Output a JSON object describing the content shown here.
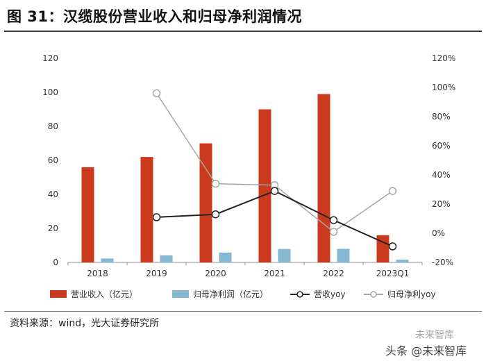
{
  "header": {
    "title": "图 31：汉缆股份营业收入和归母净利润情况"
  },
  "footer": {
    "source": "资料来源：wind，光大证券研究所"
  },
  "watermark": {
    "top": "未来智库",
    "bottom": "头条 @未来智库"
  },
  "colors": {
    "revenue_bar": "#cc3a1e",
    "profit_bar": "#86b7d0",
    "revenue_yoy": "#222222",
    "profit_yoy": "#a6a6a6",
    "grid": "#d9d9d9"
  },
  "chart_data": {
    "type": "bar",
    "categories": [
      "2018",
      "2019",
      "2020",
      "2021",
      "2022",
      "2023Q1"
    ],
    "series": [
      {
        "name": "营业收入（亿元）",
        "kind": "bar",
        "axis": "left",
        "values": [
          56,
          62,
          70,
          90,
          99,
          16
        ]
      },
      {
        "name": "归母净利润（亿元）",
        "kind": "bar",
        "axis": "left",
        "values": [
          2.3,
          4.2,
          5.8,
          7.9,
          8.0,
          1.6
        ]
      },
      {
        "name": "营收yoy",
        "kind": "line",
        "axis": "right",
        "values": [
          null,
          11,
          13,
          29,
          9,
          -9
        ]
      },
      {
        "name": "归母净利yoy",
        "kind": "line",
        "axis": "right",
        "values": [
          null,
          96,
          34,
          33,
          1,
          29
        ]
      }
    ],
    "left_axis": {
      "ylim": [
        0,
        120
      ],
      "ticks": [
        "0",
        "20",
        "40",
        "60",
        "80",
        "100",
        "120"
      ]
    },
    "right_axis": {
      "ylim": [
        -20,
        120
      ],
      "ticks": [
        "-20%",
        "0%",
        "20%",
        "40%",
        "60%",
        "80%",
        "100%",
        "120%"
      ]
    },
    "grid": false,
    "legend_position": "bottom"
  }
}
